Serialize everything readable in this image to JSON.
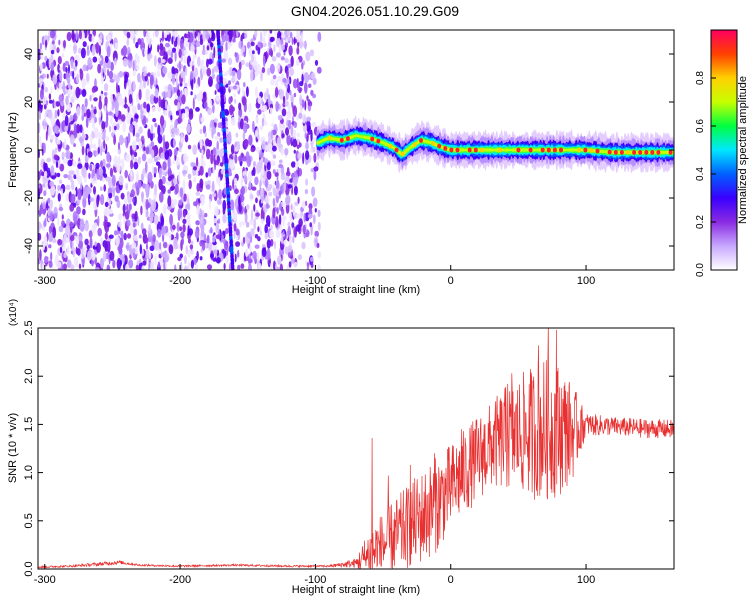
{
  "title": "GN04.2026.051.10.29.G09",
  "chart_data": [
    {
      "type": "heatmap",
      "title": "GN04.2026.051.10.29.G09",
      "xlabel": "Height of straight line (km)",
      "ylabel": "Frequency (Hz)",
      "xlim": [
        -305,
        165
      ],
      "ylim": [
        -50,
        50
      ],
      "x_ticks": [
        -300,
        -200,
        -100,
        0,
        100
      ],
      "x_tick_labels": [
        "-300",
        "-200",
        "-100",
        "0",
        "100"
      ],
      "y_ticks": [
        -40,
        -20,
        0,
        20,
        40
      ],
      "y_tick_labels": [
        "-40",
        "-20",
        "0",
        "20",
        "40"
      ],
      "noise_region_km": [
        -305,
        -97
      ],
      "artifact_streak": {
        "from": [
          -172,
          50
        ],
        "to": [
          -161,
          -50
        ]
      },
      "signal_track": [
        {
          "x": -98,
          "y": 3
        },
        {
          "x": -90,
          "y": 5
        },
        {
          "x": -80,
          "y": 4
        },
        {
          "x": -70,
          "y": 6
        },
        {
          "x": -60,
          "y": 5
        },
        {
          "x": -50,
          "y": 3
        },
        {
          "x": -42,
          "y": 1
        },
        {
          "x": -36,
          "y": -2
        },
        {
          "x": -30,
          "y": 1
        },
        {
          "x": -22,
          "y": 4
        },
        {
          "x": -14,
          "y": 3
        },
        {
          "x": -6,
          "y": 1
        },
        {
          "x": 0,
          "y": 0
        },
        {
          "x": 20,
          "y": 0
        },
        {
          "x": 40,
          "y": 0
        },
        {
          "x": 60,
          "y": 0
        },
        {
          "x": 80,
          "y": 0
        },
        {
          "x": 100,
          "y": 0
        },
        {
          "x": 120,
          "y": -1
        },
        {
          "x": 140,
          "y": -1
        },
        {
          "x": 165,
          "y": -1
        }
      ],
      "colorbar": {
        "label": "Normalized spectral amplitude",
        "range": [
          0,
          1
        ],
        "ticks": [
          0.0,
          0.2,
          0.4,
          0.6,
          0.8
        ],
        "tick_labels": [
          "0.0",
          "0.2",
          "0.4",
          "0.6",
          "0.8"
        ],
        "colors": [
          "#ffffff",
          "#c8a8ff",
          "#8a2be2",
          "#3a00ff",
          "#0060ff",
          "#00e8ff",
          "#00ff40",
          "#c8ff00",
          "#ffd000",
          "#ff4000",
          "#ff0060"
        ]
      }
    },
    {
      "type": "line",
      "xlabel": "Height of straight line (km)",
      "ylabel": "SNR (10 * v/v)",
      "y_multiplier": "(x10⁴)",
      "xlim": [
        -305,
        165
      ],
      "ylim": [
        0,
        2.5
      ],
      "x_ticks": [
        -300,
        -200,
        -100,
        0,
        100
      ],
      "x_tick_labels": [
        "-300",
        "-200",
        "-100",
        "0",
        "100"
      ],
      "y_ticks": [
        0.0,
        0.5,
        1.0,
        1.5,
        2.0,
        2.5
      ],
      "y_tick_labels": [
        "0.0",
        "0.5",
        "1.0",
        "1.5",
        "2.0",
        "2.5"
      ],
      "series": [
        {
          "name": "SNR",
          "color": "#e83030",
          "envelope": {
            "x": [
              -305,
              -280,
              -260,
              -245,
              -230,
              -200,
              -160,
              -120,
              -90,
              -70,
              -60,
              -50,
              -40,
              -30,
              -20,
              -10,
              0,
              10,
              20,
              30,
              40,
              50,
              60,
              70,
              80,
              90,
              100,
              120,
              140,
              165
            ],
            "base": [
              0.02,
              0.03,
              0.05,
              0.07,
              0.04,
              0.03,
              0.04,
              0.03,
              0.03,
              0.06,
              0.15,
              0.25,
              0.35,
              0.45,
              0.55,
              0.68,
              0.85,
              1.0,
              1.15,
              1.28,
              1.35,
              1.4,
              1.42,
              1.45,
              1.45,
              1.42,
              1.5,
              1.48,
              1.46,
              1.45
            ],
            "amp": [
              0.01,
              0.01,
              0.02,
              0.02,
              0.01,
              0.01,
              0.01,
              0.01,
              0.01,
              0.05,
              0.3,
              0.35,
              0.4,
              0.45,
              0.5,
              0.5,
              0.45,
              0.45,
              0.45,
              0.45,
              0.55,
              0.6,
              0.7,
              0.75,
              0.7,
              0.5,
              0.12,
              0.1,
              0.1,
              0.1
            ]
          },
          "peaks": [
            {
              "x": -58,
              "y": 1.36
            },
            {
              "x": -46,
              "y": 0.97
            },
            {
              "x": -30,
              "y": 1.08
            },
            {
              "x": -12,
              "y": 1.2
            },
            {
              "x": 8,
              "y": 1.45
            },
            {
              "x": 42,
              "y": 1.92
            },
            {
              "x": 45,
              "y": 2.03
            },
            {
              "x": 65,
              "y": 2.32
            },
            {
              "x": 72,
              "y": 2.55
            },
            {
              "x": 78,
              "y": 2.48
            },
            {
              "x": 85,
              "y": 1.85
            },
            {
              "x": 96,
              "y": 1.65
            }
          ]
        }
      ]
    }
  ]
}
